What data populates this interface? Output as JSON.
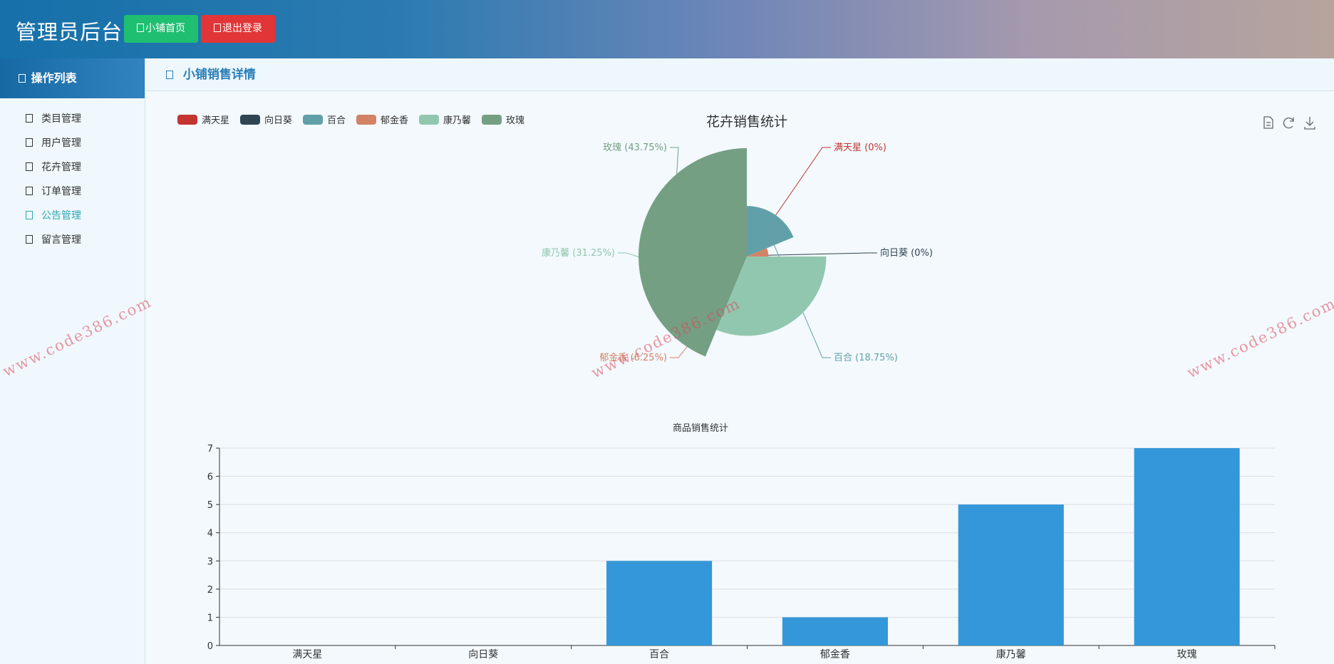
{
  "header": {
    "title": "管理员后台",
    "home_button": "小铺首页",
    "logout_button": "退出登录"
  },
  "sidebar": {
    "title": "操作列表",
    "items": [
      {
        "label": "类目管理"
      },
      {
        "label": "用户管理"
      },
      {
        "label": "花卉管理"
      },
      {
        "label": "订单管理"
      },
      {
        "label": "公告管理",
        "active": true
      },
      {
        "label": "留言管理"
      }
    ]
  },
  "main": {
    "title": "小铺销售详情"
  },
  "watermark": "www.code386.com",
  "colors": {
    "accent": "#2b7fb8",
    "home_button": "#1fbf71",
    "logout_button": "#e23537",
    "bar": "#3497d9"
  },
  "chart_data": [
    {
      "type": "pie",
      "variant": "rose",
      "title": "花卉销售统计",
      "legend_position": "top-left",
      "toolbox": [
        "data-view-icon",
        "refresh-icon",
        "download-icon"
      ],
      "slices": [
        {
          "name": "满天星",
          "value": 0,
          "label": "满天星 (0%)",
          "color": "#c23531"
        },
        {
          "name": "向日葵",
          "value": 0,
          "label": "向日葵 (0%)",
          "color": "#2f4554"
        },
        {
          "name": "百合",
          "value": 3,
          "label": "百合 (18.75%)",
          "color": "#61a0a8"
        },
        {
          "name": "郁金香",
          "value": 1,
          "label": "郁金香 (6.25%)",
          "color": "#d48265"
        },
        {
          "name": "康乃馨",
          "value": 5,
          "label": "康乃馨 (31.25%)",
          "color": "#91c7ae"
        },
        {
          "name": "玫瑰",
          "value": 7,
          "label": "玫瑰 (43.75%)",
          "color": "#749f83"
        }
      ]
    },
    {
      "type": "bar",
      "title": "商品销售统计",
      "categories": [
        "满天星",
        "向日葵",
        "百合",
        "郁金香",
        "康乃馨",
        "玫瑰"
      ],
      "values": [
        0,
        0,
        3,
        1,
        5,
        7
      ],
      "ylim": [
        0,
        7
      ],
      "yticks": [
        0,
        1,
        2,
        3,
        4,
        5,
        6,
        7
      ],
      "grid": true
    }
  ]
}
